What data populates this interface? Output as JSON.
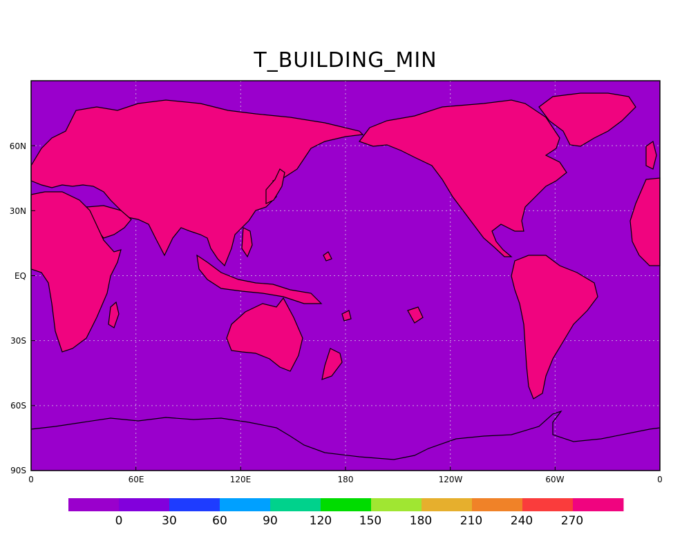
{
  "title": "T_BUILDING_MIN",
  "colors": {
    "ocean": "#9a00cc",
    "land": "#f0047f",
    "coast": "#000000",
    "grid": "#c9a0e0"
  },
  "map": {
    "projection": "cylindrical-equidistant",
    "center_longitude": 180,
    "lat_range": [
      -90,
      90
    ],
    "grid_lines": "dotted"
  },
  "axes": {
    "lat_labels": [
      "60N",
      "30N",
      "EQ",
      "30S",
      "60S",
      "90S"
    ],
    "lon_labels": [
      "0",
      "60E",
      "120E",
      "180",
      "120W",
      "60W",
      "0"
    ]
  },
  "colorbar": {
    "colors": [
      "#9a00cc",
      "#8200dc",
      "#1e3cff",
      "#00a0ff",
      "#00d28c",
      "#00dc00",
      "#a0e632",
      "#e6af2d",
      "#f08228",
      "#fa3c3c",
      "#f0047f"
    ],
    "labels": [
      "0",
      "30",
      "60",
      "90",
      "120",
      "150",
      "180",
      "210",
      "240",
      "270"
    ]
  }
}
